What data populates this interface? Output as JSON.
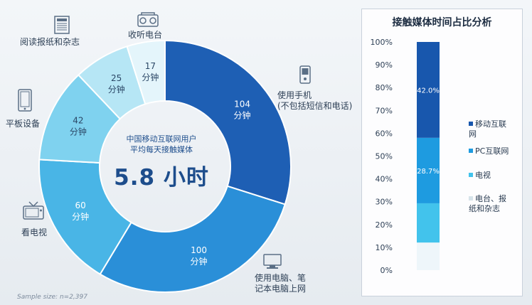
{
  "chart_data": [
    {
      "type": "pie",
      "variant": "donut",
      "center_text": {
        "line1": "中国移动互联网用户",
        "line2": "平均每天接触媒体",
        "total": "5.8 小时"
      },
      "slices": [
        {
          "label": "使用手机\n(不包括短信和电话)",
          "value": 104,
          "value_text": "104\n分钟",
          "color": "#1e5fb4",
          "icon": "mobile-phone-icon"
        },
        {
          "label": "使用电脑、笔\n记本电脑上网",
          "value": 100,
          "value_text": "100\n分钟",
          "color": "#2a8fd8",
          "icon": "computer-icon"
        },
        {
          "label": "看电视",
          "value": 60,
          "value_text": "60\n分钟",
          "color": "#49b5e6",
          "icon": "television-icon"
        },
        {
          "label": "平板设备",
          "value": 42,
          "value_text": "42\n分钟",
          "color": "#7fd2ef",
          "icon": "tablet-icon"
        },
        {
          "label": "阅读报纸和杂志",
          "value": 25,
          "value_text": "25\n分钟",
          "color": "#b6e6f5",
          "icon": "newspaper-icon"
        },
        {
          "label": "收听电台",
          "value": 17,
          "value_text": "17\n分钟",
          "color": "#e4f5fb",
          "icon": "radio-icon"
        }
      ],
      "sample_note": "Sample size: n=2,397"
    },
    {
      "type": "bar",
      "variant": "stacked-100",
      "title": "接触媒体时间占比分析",
      "y_ticks": [
        "0%",
        "10%",
        "20%",
        "30%",
        "40%",
        "50%",
        "60%",
        "70%",
        "80%",
        "90%",
        "100%"
      ],
      "ylim": [
        0,
        100
      ],
      "segments": [
        {
          "name": "电台、报纸和杂志",
          "value": 12.1,
          "color": "#eef6fa",
          "label": ""
        },
        {
          "name": "电视",
          "value": 17.2,
          "color": "#42c3ec",
          "label": ""
        },
        {
          "name": "PC互联网",
          "value": 28.7,
          "color": "#1e9be0",
          "label": "28.7%"
        },
        {
          "name": "移动互联网",
          "value": 42.0,
          "color": "#1857ad",
          "label": "42.0%"
        }
      ],
      "legend": [
        {
          "name": "移动互联\n网",
          "color": "#1857ad"
        },
        {
          "name": "PC互联网",
          "color": "#1e9be0"
        },
        {
          "name": "电视",
          "color": "#42c3ec"
        },
        {
          "name": "电台、报\n纸和杂志",
          "color": "#d6e3ea"
        }
      ],
      "legend_position": "right"
    }
  ]
}
